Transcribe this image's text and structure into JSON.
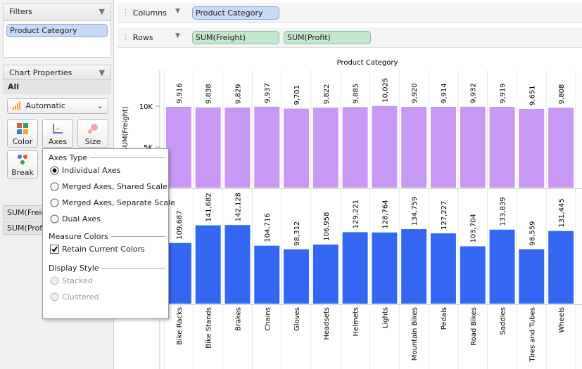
{
  "filters": {
    "title": "Filters",
    "pills": [
      "Product Category"
    ]
  },
  "chart_properties": {
    "title": "Chart Properties",
    "scope": "All",
    "mark_type": "Automatic",
    "buttons": [
      "Color",
      "Axes",
      "Size",
      "Break"
    ],
    "measures": [
      "SUM(Freight)",
      "SUM(Profit)"
    ]
  },
  "shelves": {
    "columns": {
      "label": "Columns",
      "pills": [
        "Product Category"
      ]
    },
    "rows": {
      "label": "Rows",
      "pills": [
        "SUM(Freight)",
        "SUM(Profit)"
      ]
    }
  },
  "axes_popup": {
    "axes_type": {
      "title": "Axes Type",
      "options": [
        "Individual Axes",
        "Merged Axes, Shared Scale",
        "Merged Axes, Separate Scale",
        "Dual Axes"
      ],
      "selected": 0
    },
    "measure_colors": {
      "title": "Measure Colors",
      "checkbox": "Retain Current Colors",
      "checked": true
    },
    "display_style": {
      "title": "Display Style",
      "options": [
        "Stacked",
        "Clustered"
      ],
      "enabled": false
    }
  },
  "chart": {
    "type": "bar",
    "title": "Product Category",
    "categories": [
      "Bike Racks",
      "Bike Stands",
      "Brakes",
      "Chains",
      "Gloves",
      "Headsets",
      "Helmets",
      "Lights",
      "Mountain Bikes",
      "Pedals",
      "Road Bikes",
      "Saddles",
      "Tires and Tubes",
      "Wheels"
    ],
    "series": [
      {
        "name": "SUM(Freight)",
        "color": "#c898f5",
        "values": [
          9916,
          9838,
          9829,
          9937,
          9701,
          9822,
          9885,
          10025,
          9920,
          9914,
          9932,
          9919,
          9651,
          9808
        ],
        "value_labels": [
          "9,916",
          "9,838",
          "9,829",
          "9,937",
          "9,701",
          "9,822",
          "9,885",
          "10,025",
          "9,920",
          "9,914",
          "9,932",
          "9,919",
          "9,651",
          "9,808"
        ],
        "ylim": [
          0,
          14400
        ],
        "yticks": [
          {
            "value": 10000,
            "label": "10K"
          },
          {
            "value": 5000,
            "label": "5K"
          }
        ]
      },
      {
        "name": "SUM(Profit)",
        "color": "#3367f2",
        "values": [
          109687,
          141682,
          142128,
          104716,
          98312,
          106958,
          129221,
          128764,
          134759,
          127227,
          103704,
          133839,
          98559,
          131445
        ],
        "value_labels": [
          "109,687",
          "141,682",
          "142,128",
          "104,716",
          "98,312",
          "106,958",
          "129,221",
          "128,764",
          "134,759",
          "127,227",
          "103,704",
          "133,839",
          "98,559",
          "131,445"
        ],
        "ylim": [
          0,
          206000
        ]
      }
    ]
  }
}
